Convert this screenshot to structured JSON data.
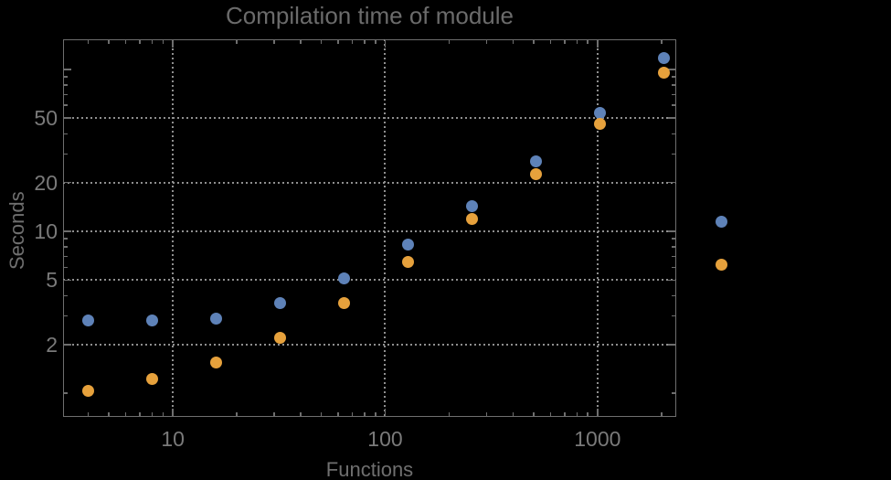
{
  "page": {
    "background_color": "#000000"
  },
  "chart": {
    "title": "Compilation time of module",
    "xlabel": "Functions",
    "ylabel": "Seconds"
  },
  "chart_data": {
    "type": "scatter",
    "title": "Compilation time of module",
    "xlabel": "Functions",
    "ylabel": "Seconds",
    "x_scale": "log",
    "y_scale": "log",
    "grid": true,
    "grid_style": "dotted",
    "x_axis": {
      "range": [
        3.04,
        2349
      ],
      "tick_values": [
        10,
        100,
        1000
      ],
      "tick_labels": [
        "10",
        "100",
        "1000"
      ],
      "minor_tick_values": [
        4,
        5,
        6,
        7,
        8,
        9,
        20,
        30,
        40,
        50,
        60,
        70,
        80,
        90,
        200,
        300,
        400,
        500,
        600,
        700,
        800,
        900,
        2000
      ]
    },
    "y_axis": {
      "range": [
        0.715,
        153.4
      ],
      "tick_values": [
        2,
        5,
        10,
        20,
        50
      ],
      "tick_labels": [
        "2",
        "5",
        "10",
        "20",
        "50"
      ],
      "unlabeled_major_tick_values": [
        100
      ],
      "minor_tick_values": [
        1,
        3,
        4,
        6,
        7,
        8,
        9,
        30,
        40,
        60,
        70,
        80,
        90
      ]
    },
    "x": [
      4,
      8,
      16,
      32,
      64,
      128,
      256,
      512,
      1024,
      2048
    ],
    "series": [
      {
        "name": "series-blue",
        "color": "#5E82B8",
        "values": [
          2.8,
          2.8,
          2.9,
          3.6,
          5.1,
          8.3,
          14.3,
          27,
          54,
          117
        ]
      },
      {
        "name": "series-orange",
        "color": "#E6A13C",
        "values": [
          1.04,
          1.22,
          1.55,
          2.2,
          3.6,
          6.5,
          11.9,
          22.5,
          46,
          95
        ]
      }
    ],
    "legend": {
      "position": "right-of-plot",
      "labels_visible": false
    },
    "colors": {
      "background": "#000000",
      "frame": "#6e6e6e",
      "gridline": "#8f8f8f",
      "text": "#6f6f6f"
    }
  }
}
